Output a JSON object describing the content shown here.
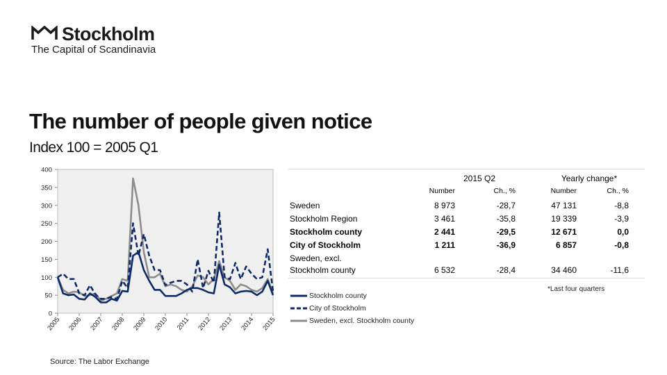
{
  "logo": {
    "name": "Stockholm",
    "tagline": "The Capital of Scandinavia"
  },
  "title": "The number of people given notice",
  "subtitle": "Index 100 = 2005 Q1",
  "source": "Source: The Labor Exchange",
  "table": {
    "group_headers": [
      "2015 Q2",
      "Yearly change*"
    ],
    "col_headers": [
      "Number",
      "Ch., %",
      "Number",
      "Ch., %"
    ],
    "rows": [
      {
        "label": "Sweden",
        "label2": "",
        "bold": false,
        "values": [
          "8 973",
          "-28,7",
          "47 131",
          "-8,8"
        ]
      },
      {
        "label": "Stockholm Region",
        "label2": "",
        "bold": false,
        "values": [
          "3 461",
          "-35,8",
          "19 339",
          "-3,9"
        ]
      },
      {
        "label": "Stockholm county",
        "label2": "",
        "bold": true,
        "values": [
          "2 441",
          "-29,5",
          "12 671",
          "0,0"
        ]
      },
      {
        "label": "City of Stockholm",
        "label2": "",
        "bold": true,
        "values": [
          "1 211",
          "-36,9",
          "6 857",
          "-0,8"
        ]
      },
      {
        "label": "Sweden, excl.",
        "label2": "Stockholm county",
        "bold": false,
        "values": [
          "6 532",
          "-28,4",
          "34 460",
          "-11,6"
        ]
      }
    ],
    "footnote": "*Last four quarters"
  },
  "chart_data": {
    "type": "line",
    "title": "",
    "xlabel": "",
    "ylabel": "",
    "ylim": [
      0,
      400
    ],
    "yticks": [
      0,
      50,
      100,
      150,
      200,
      250,
      300,
      350,
      400
    ],
    "xticks": [
      "2005",
      "2006",
      "2007",
      "2008",
      "2009",
      "2010",
      "2011",
      "2012",
      "2013",
      "2014",
      "2015"
    ],
    "x_start": "2005 Q1",
    "x_end": "2015 Q2",
    "grid": false,
    "legend_position": "bottom-right",
    "colors": {
      "plot_bg": "#efefef",
      "county": "#0d2a66",
      "city": "#0d2a66",
      "sweden": "#8c8c8c"
    },
    "series": [
      {
        "name": "Stockholm county",
        "style": "solid",
        "values": [
          100,
          55,
          50,
          52,
          40,
          38,
          55,
          45,
          30,
          30,
          40,
          35,
          62,
          60,
          160,
          170,
          120,
          90,
          65,
          65,
          48,
          48,
          48,
          55,
          65,
          70,
          70,
          65,
          58,
          55,
          135,
          80,
          72,
          55,
          60,
          62,
          60,
          50,
          60,
          90,
          50
        ]
      },
      {
        "name": "City of Stockholm",
        "style": "dashed",
        "values": [
          100,
          110,
          95,
          95,
          55,
          50,
          78,
          52,
          40,
          40,
          45,
          40,
          90,
          70,
          250,
          160,
          220,
          160,
          120,
          120,
          78,
          85,
          90,
          90,
          80,
          60,
          150,
          70,
          118,
          85,
          280,
          100,
          95,
          140,
          95,
          130,
          110,
          95,
          100,
          178,
          60
        ]
      },
      {
        "name": "Sweden, excl. Stockholm county",
        "style": "solid",
        "values": [
          100,
          65,
          55,
          60,
          58,
          48,
          50,
          55,
          35,
          40,
          48,
          55,
          95,
          90,
          375,
          300,
          170,
          100,
          100,
          110,
          75,
          80,
          75,
          65,
          60,
          75,
          105,
          100,
          80,
          95,
          145,
          100,
          90,
          65,
          80,
          75,
          65,
          60,
          70,
          95,
          55
        ]
      }
    ]
  }
}
